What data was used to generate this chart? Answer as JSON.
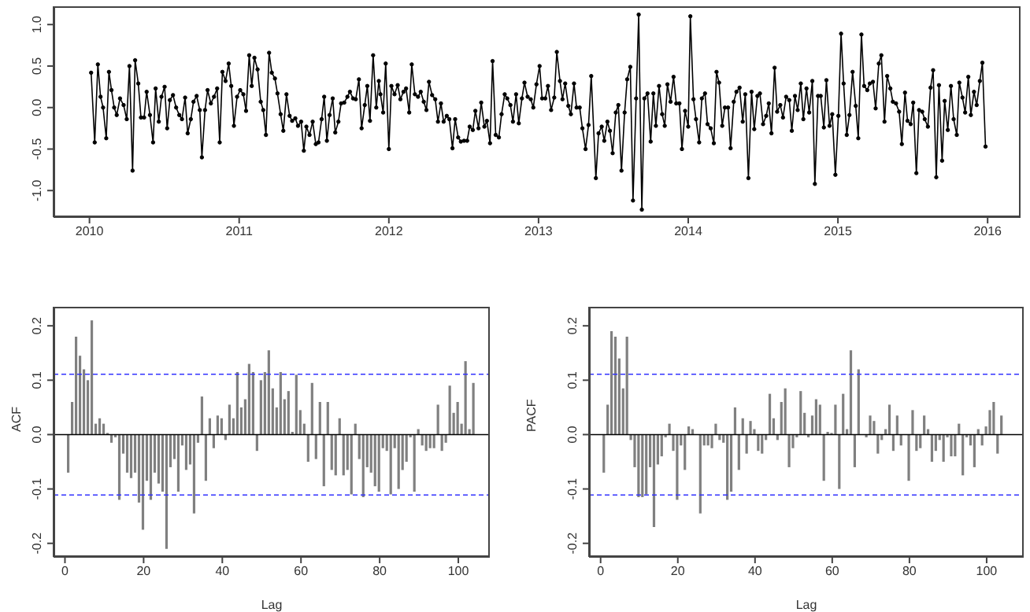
{
  "chart_data": [
    {
      "type": "line",
      "marker": "circle",
      "line_style": "solid",
      "color": "#000000",
      "x": [
        2010.011,
        2010.035,
        2010.056,
        2010.074,
        2010.091,
        2010.112,
        2010.13,
        2010.147,
        2010.165,
        2010.182,
        2010.204,
        2010.228,
        2010.249,
        2010.267,
        2010.288,
        2010.305,
        2010.326,
        2010.344,
        2010.365,
        2010.382,
        2010.404,
        2010.425,
        2010.442,
        2010.463,
        2010.481,
        2010.502,
        2010.519,
        2010.537,
        2010.558,
        2010.579,
        2010.6,
        2010.618,
        2010.639,
        2010.656,
        2010.677,
        2010.695,
        2010.716,
        2010.737,
        2010.751,
        2010.772,
        2010.789,
        2010.811,
        2010.832,
        2010.853,
        2010.87,
        2010.888,
        2010.909,
        2010.93,
        2010.947,
        2010.965,
        2010.986,
        2011.007,
        2011.028,
        2011.046,
        2011.067,
        2011.084,
        2011.102,
        2011.123,
        2011.144,
        2011.161,
        2011.179,
        2011.2,
        2011.218,
        2011.239,
        2011.256,
        2011.277,
        2011.295,
        2011.316,
        2011.337,
        2011.354,
        2011.375,
        2011.393,
        2011.414,
        2011.432,
        2011.449,
        2011.47,
        2011.491,
        2011.512,
        2011.53,
        2011.551,
        2011.568,
        2011.586,
        2011.604,
        2011.625,
        2011.642,
        2011.663,
        2011.681,
        2011.702,
        2011.723,
        2011.74,
        2011.761,
        2011.779,
        2011.8,
        2011.818,
        2011.839,
        2011.856,
        2011.874,
        2011.895,
        2011.916,
        2011.933,
        2011.944,
        2011.962,
        2011.979,
        2012.0,
        2012.017,
        2012.038,
        2012.059,
        2012.077,
        2012.098,
        2012.115,
        2012.136,
        2012.153,
        2012.174,
        2012.195,
        2012.213,
        2012.233,
        2012.251,
        2012.268,
        2012.289,
        2012.31,
        2012.328,
        2012.348,
        2012.366,
        2012.387,
        2012.404,
        2012.425,
        2012.443,
        2012.463,
        2012.481,
        2012.502,
        2012.523,
        2012.54,
        2012.561,
        2012.578,
        2012.599,
        2012.617,
        2012.638,
        2012.655,
        2012.676,
        2012.693,
        2012.714,
        2012.735,
        2012.753,
        2012.774,
        2012.791,
        2012.812,
        2012.829,
        2012.85,
        2012.868,
        2012.889,
        2012.906,
        2012.927,
        2012.948,
        2012.965,
        2012.986,
        2013.007,
        2013.024,
        2013.045,
        2013.063,
        2013.084,
        2013.105,
        2013.122,
        2013.143,
        2013.16,
        2013.178,
        2013.199,
        2013.216,
        2013.237,
        2013.254,
        2013.275,
        2013.293,
        2013.314,
        2013.334,
        2013.352,
        2013.383,
        2013.401,
        2013.422,
        2013.439,
        2013.46,
        2013.477,
        2013.495,
        2013.516,
        2013.533,
        2013.554,
        2013.575,
        2013.592,
        2013.613,
        2013.631,
        2013.652,
        2013.669,
        2013.69,
        2013.707,
        2013.728,
        2013.749,
        2013.767,
        2013.784,
        2013.805,
        2013.826,
        2013.843,
        2013.861,
        2013.882,
        2013.902,
        2013.92,
        2013.941,
        2013.958,
        2013.979,
        2014.0,
        2014.014,
        2014.035,
        2014.052,
        2014.073,
        2014.091,
        2014.112,
        2014.129,
        2014.15,
        2014.171,
        2014.189,
        2014.206,
        2014.227,
        2014.245,
        2014.266,
        2014.283,
        2014.304,
        2014.322,
        2014.343,
        2014.364,
        2014.381,
        2014.402,
        2014.423,
        2014.441,
        2014.462,
        2014.479,
        2014.5,
        2014.521,
        2014.538,
        2014.556,
        2014.577,
        2014.594,
        2014.615,
        2014.633,
        2014.654,
        2014.675,
        2014.692,
        2014.713,
        2014.731,
        2014.752,
        2014.769,
        2014.79,
        2014.808,
        2014.829,
        2014.846,
        2014.867,
        2014.885,
        2014.906,
        2014.923,
        2014.944,
        2014.962,
        2014.983,
        2015.003,
        2015.021,
        2015.038,
        2015.059,
        2015.077,
        2015.098,
        2015.119,
        2015.136,
        2015.157,
        2015.175,
        2015.196,
        2015.213,
        2015.234,
        2015.252,
        2015.273,
        2015.29,
        2015.311,
        2015.329,
        2015.35,
        2015.367,
        2015.388,
        2015.409,
        2015.427,
        2015.448,
        2015.465,
        2015.486,
        2015.503,
        2015.524,
        2015.542,
        2015.563,
        2015.58,
        2015.601,
        2015.619,
        2015.636,
        2015.657,
        2015.675,
        2015.696,
        2015.713,
        2015.734,
        2015.755,
        2015.773,
        2015.794,
        2015.811,
        2015.832,
        2015.85,
        2015.871,
        2015.888,
        2015.909,
        2015.927,
        2015.948,
        2015.965,
        2015.986
      ],
      "values": [
        0.42,
        -0.42,
        0.52,
        0.13,
        0,
        -0.37,
        0.43,
        0.21,
        0,
        -0.09,
        0.11,
        0.03,
        -0.14,
        0.5,
        -0.76,
        0.57,
        0.29,
        -0.12,
        -0.12,
        0.19,
        -0.09,
        -0.42,
        0.23,
        -0.17,
        0.13,
        0.25,
        -0.25,
        0.09,
        0.15,
        0,
        -0.09,
        -0.14,
        0.12,
        -0.31,
        -0.14,
        0.07,
        0.14,
        -0.03,
        -0.6,
        -0.03,
        0.21,
        0.05,
        0.13,
        0.23,
        -0.42,
        0.43,
        0.32,
        0.53,
        0.26,
        -0.22,
        0.13,
        0.21,
        0.16,
        -0.04,
        0.63,
        0.26,
        0.6,
        0.46,
        0.07,
        -0.03,
        -0.33,
        0.66,
        0.42,
        0.35,
        0.17,
        -0.08,
        -0.28,
        0.16,
        -0.1,
        -0.16,
        -0.13,
        -0.22,
        -0.17,
        -0.52,
        -0.23,
        -0.33,
        -0.17,
        -0.44,
        -0.42,
        -0.14,
        0.13,
        -0.4,
        -0.09,
        0.11,
        -0.3,
        -0.17,
        0.05,
        0.06,
        0.13,
        0.19,
        0.11,
        0.1,
        0.34,
        -0.25,
        0.03,
        0.26,
        -0.16,
        0.63,
        0,
        0.32,
        0.16,
        -0.06,
        0.53,
        -0.5,
        0.26,
        0.16,
        0.27,
        0.1,
        0.19,
        0.23,
        -0.06,
        0.52,
        0.16,
        0.13,
        0.19,
        0.07,
        -0.03,
        0.31,
        0.15,
        0.1,
        -0.17,
        0.05,
        -0.17,
        -0.1,
        -0.14,
        -0.49,
        -0.14,
        -0.36,
        -0.41,
        -0.4,
        -0.4,
        -0.23,
        -0.27,
        -0.04,
        -0.25,
        0.06,
        -0.23,
        -0.16,
        -0.43,
        0.56,
        -0.33,
        -0.36,
        -0.08,
        0.16,
        0.11,
        0.03,
        -0.17,
        0.16,
        -0.19,
        0.11,
        0.3,
        0.13,
        0.1,
        0,
        0.28,
        0.5,
        0.11,
        0.11,
        0.26,
        -0.03,
        0.12,
        0.67,
        0.32,
        0.1,
        0.29,
        0.02,
        -0.08,
        0.29,
        0,
        0,
        -0.25,
        -0.5,
        -0.21,
        0.38,
        -0.85,
        -0.31,
        -0.23,
        -0.4,
        -0.17,
        -0.28,
        -0.55,
        -0.06,
        0.03,
        -0.76,
        -0.06,
        0.34,
        0.49,
        -1.12,
        0.11,
        1.12,
        -1.23,
        0.11,
        0.17,
        -0.41,
        0.17,
        -0.22,
        0.26,
        -0.08,
        -0.22,
        0.28,
        0.07,
        0.37,
        0.05,
        0.05,
        -0.5,
        -0.04,
        -0.23,
        1.1,
        0.1,
        -0.14,
        -0.42,
        0.11,
        0.17,
        -0.2,
        -0.25,
        -0.43,
        0.43,
        0.3,
        -0.22,
        0,
        0,
        -0.49,
        0.07,
        0.19,
        0.24,
        -0.17,
        0.16,
        -0.85,
        0.19,
        -0.26,
        0.14,
        0.17,
        -0.2,
        -0.1,
        0.05,
        -0.31,
        0.48,
        -0.05,
        0.03,
        -0.12,
        0.13,
        0.09,
        -0.28,
        0.14,
        -0.03,
        0.29,
        -0.14,
        0.23,
        -0.06,
        0.32,
        -0.92,
        0.14,
        0.14,
        -0.24,
        0.33,
        -0.22,
        -0.08,
        -0.81,
        -0.1,
        0.89,
        0.29,
        -0.33,
        -0.09,
        0.43,
        0.02,
        -0.37,
        0.88,
        0.26,
        0.21,
        0.29,
        0.31,
        -0.01,
        0.53,
        0.63,
        -0.17,
        0.38,
        0.23,
        0.07,
        0.05,
        -0.05,
        -0.44,
        0.18,
        -0.16,
        -0.2,
        0.06,
        -0.79,
        -0.03,
        -0.05,
        -0.14,
        -0.23,
        0.24,
        0.45,
        -0.84,
        0.27,
        -0.64,
        0.08,
        -0.27,
        0.26,
        -0.14,
        -0.33,
        0.3,
        0.12,
        -0.06,
        0.37,
        -0.09,
        0.19,
        0.03,
        0.32,
        0.54,
        -0.47
      ],
      "xlim": [
        2009.76,
        2016.22
      ],
      "xticks": [
        2010,
        2011,
        2012,
        2013,
        2014,
        2015,
        2016
      ],
      "ylim": [
        -1.32,
        1.22
      ],
      "yticks": [
        {
          "value": -1,
          "label": "-1.0"
        },
        -0.5,
        {
          "value": 0,
          "label": "0.0"
        },
        0.5,
        {
          "value": 1,
          "label": "1.0"
        }
      ]
    },
    {
      "type": "bar",
      "color": "#808080",
      "xlabel": "Lag",
      "ylabel": "ACF",
      "x": [
        1,
        2,
        3,
        4,
        5,
        6,
        7,
        8,
        9,
        10,
        11,
        12,
        13,
        14,
        15,
        16,
        17,
        18,
        19,
        20,
        21,
        22,
        23,
        24,
        25,
        26,
        27,
        28,
        29,
        30,
        31,
        32,
        33,
        34,
        35,
        36,
        37,
        38,
        39,
        40,
        41,
        42,
        43,
        44,
        45,
        46,
        47,
        48,
        49,
        50,
        51,
        52,
        53,
        54,
        55,
        56,
        57,
        58,
        59,
        60,
        61,
        62,
        63,
        64,
        65,
        66,
        67,
        68,
        69,
        70,
        71,
        72,
        73,
        74,
        75,
        76,
        77,
        78,
        79,
        80,
        81,
        82,
        83,
        84,
        85,
        86,
        87,
        88,
        89,
        90,
        91,
        92,
        93,
        94,
        95,
        96,
        97,
        98,
        99,
        100,
        101,
        102,
        103,
        104
      ],
      "values": [
        -0.07,
        0.06,
        0.18,
        0.145,
        0.12,
        0.1,
        0.21,
        0.02,
        0.03,
        0.02,
        0.003,
        -0.015,
        -0.005,
        -0.12,
        -0.035,
        -0.07,
        -0.08,
        -0.07,
        -0.125,
        -0.175,
        -0.085,
        -0.12,
        -0.07,
        -0.09,
        -0.105,
        -0.21,
        -0.06,
        -0.045,
        -0.105,
        -0.02,
        -0.065,
        -0.055,
        -0.145,
        -0.015,
        0.07,
        -0.085,
        0.03,
        -0.025,
        0.035,
        0.03,
        -0.01,
        0.055,
        0.03,
        0.115,
        0.05,
        0.065,
        0.13,
        0.115,
        -0.03,
        0.1,
        0.115,
        0.155,
        0.085,
        0.05,
        0.115,
        0.065,
        0.08,
        0.005,
        0.11,
        0.045,
        0.02,
        -0.05,
        0.095,
        -0.045,
        0.06,
        -0.095,
        0.06,
        -0.065,
        -0.075,
        0.03,
        -0.075,
        -0.065,
        -0.11,
        0.02,
        -0.045,
        -0.115,
        -0.06,
        -0.07,
        -0.095,
        -0.105,
        -0.025,
        -0.03,
        -0.11,
        -0.025,
        -0.1,
        -0.065,
        -0.05,
        -0.005,
        -0.105,
        0.01,
        -0.02,
        -0.03,
        -0.025,
        -0.025,
        0.055,
        -0.03,
        -0.015,
        0.09,
        0.04,
        0.06,
        0.02,
        0.135,
        0.01,
        0.095
      ],
      "xlim": [
        -2.9,
        108
      ],
      "xticks": [
        0,
        20,
        40,
        60,
        80,
        100
      ],
      "ylim": [
        -0.225,
        0.235
      ],
      "yticks": [
        -0.2,
        -0.1,
        {
          "value": 0,
          "label": "0.0"
        },
        0.1,
        0.2
      ],
      "ref_lines": [
        {
          "axis": "y",
          "value": 0,
          "color": "#000000"
        },
        {
          "axis": "y",
          "value": 0.111,
          "color": "#3333ff",
          "line_style": "dashed"
        },
        {
          "axis": "y",
          "value": -0.111,
          "color": "#3333ff",
          "line_style": "dashed"
        }
      ]
    },
    {
      "type": "bar",
      "color": "#808080",
      "xlabel": "Lag",
      "ylabel": "PACF",
      "x": [
        1,
        2,
        3,
        4,
        5,
        6,
        7,
        8,
        9,
        10,
        11,
        12,
        13,
        14,
        15,
        16,
        17,
        18,
        19,
        20,
        21,
        22,
        23,
        24,
        25,
        26,
        27,
        28,
        29,
        30,
        31,
        32,
        33,
        34,
        35,
        36,
        37,
        38,
        39,
        40,
        41,
        42,
        43,
        44,
        45,
        46,
        47,
        48,
        49,
        50,
        51,
        52,
        53,
        54,
        55,
        56,
        57,
        58,
        59,
        60,
        61,
        62,
        63,
        64,
        65,
        66,
        67,
        68,
        69,
        70,
        71,
        72,
        73,
        74,
        75,
        76,
        77,
        78,
        79,
        80,
        81,
        82,
        83,
        84,
        85,
        86,
        87,
        88,
        89,
        90,
        91,
        92,
        93,
        94,
        95,
        96,
        97,
        98,
        99,
        100,
        101,
        102,
        103,
        104
      ],
      "values": [
        -0.07,
        0.055,
        0.19,
        0.18,
        0.14,
        0.085,
        0.18,
        -0.01,
        -0.06,
        -0.115,
        -0.115,
        -0.11,
        -0.06,
        -0.17,
        -0.055,
        -0.04,
        -0.005,
        0.02,
        -0.03,
        -0.12,
        -0.02,
        -0.065,
        0.015,
        0.01,
        null,
        -0.145,
        -0.02,
        -0.02,
        -0.025,
        0.02,
        -0.01,
        -0.015,
        -0.12,
        -0.105,
        0.05,
        -0.065,
        0.03,
        -0.035,
        0.025,
        0.01,
        -0.03,
        -0.035,
        -0.01,
        0.075,
        0.03,
        -0.01,
        0.06,
        0.085,
        -0.06,
        -0.025,
        -0.005,
        0.08,
        0.04,
        -0.005,
        0.035,
        0.065,
        0.055,
        -0.085,
        0.005,
        0.003,
        0.055,
        -0.1,
        0.075,
        0.01,
        0.155,
        -0.06,
        0.12,
        null,
        -0.005,
        0.035,
        0.025,
        -0.035,
        -0.01,
        0.01,
        0.055,
        -0.03,
        0.035,
        -0.02,
        null,
        -0.085,
        0.045,
        -0.03,
        -0.025,
        0.035,
        0.01,
        -0.05,
        -0.03,
        -0.01,
        -0.05,
        -0.005,
        -0.04,
        -0.04,
        0.02,
        -0.075,
        -0.005,
        -0.02,
        -0.06,
        0.01,
        -0.02,
        0.015,
        0.045,
        0.06,
        -0.035,
        0.035
      ],
      "xlim": [
        -3,
        109.6
      ],
      "xticks": [
        0,
        20,
        40,
        60,
        80,
        100
      ],
      "ylim": [
        -0.225,
        0.235
      ],
      "yticks": [
        -0.2,
        -0.1,
        {
          "value": 0,
          "label": "0.0"
        },
        0.1,
        0.2
      ],
      "ref_lines": [
        {
          "axis": "y",
          "value": 0,
          "color": "#000000"
        },
        {
          "axis": "y",
          "value": 0.111,
          "color": "#3333ff",
          "line_style": "dashed"
        },
        {
          "axis": "y",
          "value": -0.111,
          "color": "#3333ff",
          "line_style": "dashed"
        }
      ]
    }
  ]
}
